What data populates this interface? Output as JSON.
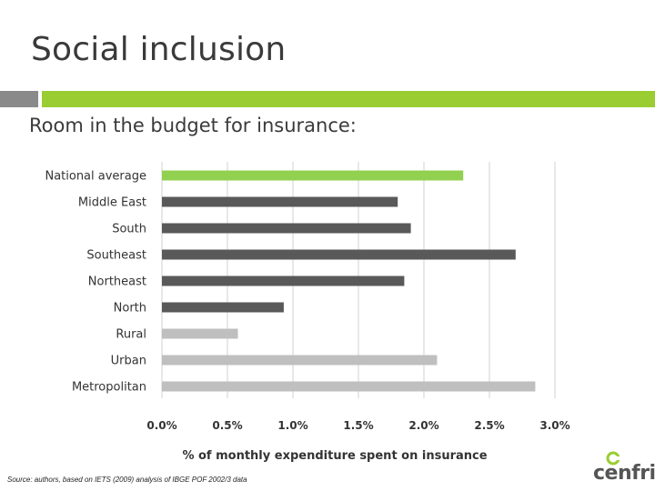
{
  "slide": {
    "title": "Social inclusion",
    "subtitle": "Room in the budget for insurance:",
    "source": "Source: authors, based on IETS (2009) analysis of IBGE POF 2002/3 data",
    "logo_text": "cenfri"
  },
  "colors": {
    "accent_green": "#9acd32",
    "bar_dark": "#595959",
    "bar_light": "#bfbfbf",
    "rule_gray": "#8a8a8a"
  },
  "chart_data": {
    "type": "bar",
    "orientation": "horizontal",
    "categories": [
      "National average",
      "Middle East",
      "South",
      "Southeast",
      "Northeast",
      "North",
      "Rural",
      "Urban",
      "Metropolitan"
    ],
    "values": [
      2.3,
      1.8,
      1.9,
      2.7,
      1.85,
      0.93,
      0.58,
      2.1,
      2.85
    ],
    "bar_colors": [
      "#92d050",
      "#595959",
      "#595959",
      "#595959",
      "#595959",
      "#595959",
      "#bfbfbf",
      "#bfbfbf",
      "#bfbfbf"
    ],
    "xlabel": "% of monthly expenditure spent on insurance",
    "ylabel": "",
    "xlim": [
      0,
      3.0
    ],
    "xticks": [
      "0.0%",
      "0.5%",
      "1.0%",
      "1.5%",
      "2.0%",
      "2.5%",
      "3.0%"
    ],
    "grid": true,
    "legend": "none"
  }
}
